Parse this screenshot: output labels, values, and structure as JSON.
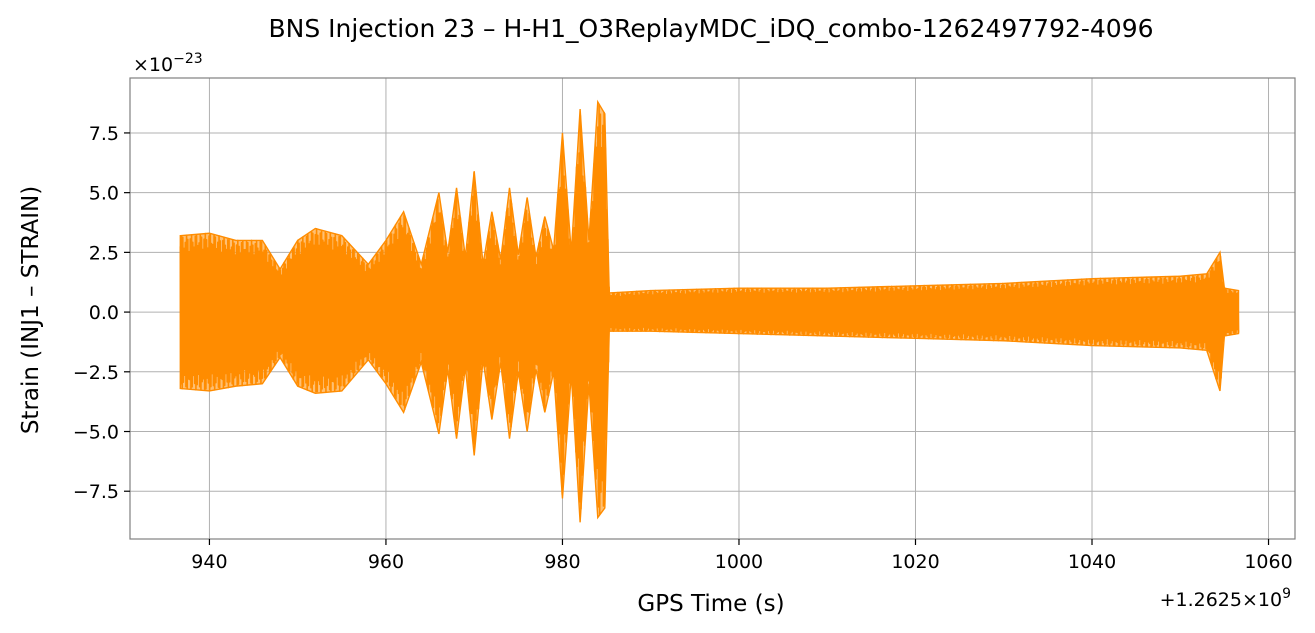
{
  "chart_data": {
    "type": "line",
    "title": "BNS Injection 23 – H-H1_O3ReplayMDC_iDQ_combo-1262497792-4096",
    "xlabel": "GPS Time (s)",
    "ylabel": "Strain (INJ1 – STRAIN)",
    "x_offset_label": "+1.2625×10",
    "x_offset_exponent": "9",
    "y_scale_label": "×10",
    "y_scale_exponent": "−23",
    "xlim": [
      931,
      1063
    ],
    "ylim": [
      -9.5,
      9.8
    ],
    "x_ticks": [
      940,
      960,
      980,
      1000,
      1020,
      1040,
      1060
    ],
    "x_tick_labels": [
      "940",
      "960",
      "980",
      "1000",
      "1020",
      "1040",
      "1060"
    ],
    "y_ticks": [
      -7.5,
      -5.0,
      -2.5,
      0.0,
      2.5,
      5.0,
      7.5
    ],
    "y_tick_labels": [
      "−7.5",
      "−5.0",
      "−2.5",
      "0.0",
      "2.5",
      "5.0",
      "7.5"
    ],
    "grid": true,
    "series": [
      {
        "color": "#ff8c00",
        "x": [
          936.7,
          940,
          943,
          946,
          948,
          950,
          952,
          955,
          958,
          960,
          962,
          964,
          966,
          967,
          968,
          969,
          970,
          971,
          972,
          973,
          974,
          975,
          976,
          977,
          978,
          979,
          980,
          981,
          982,
          983,
          984,
          984.8,
          985.3,
          990,
          1000,
          1010,
          1020,
          1030,
          1040,
          1050,
          1053,
          1054.5,
          1055,
          1056.6
        ],
        "upper": [
          3.2,
          3.3,
          3.0,
          3.0,
          1.8,
          3.0,
          3.5,
          3.2,
          2.0,
          3.0,
          4.2,
          2.0,
          5.0,
          2.5,
          5.2,
          2.3,
          5.9,
          2.0,
          4.2,
          2.2,
          5.2,
          2.4,
          4.8,
          2.3,
          4.0,
          2.6,
          7.5,
          2.5,
          8.5,
          3.0,
          8.8,
          8.3,
          0.8,
          0.9,
          1.0,
          1.0,
          1.1,
          1.2,
          1.4,
          1.5,
          1.6,
          2.5,
          1.0,
          0.9
        ],
        "lower": [
          -3.2,
          -3.3,
          -3.1,
          -3.0,
          -1.9,
          -3.1,
          -3.4,
          -3.3,
          -2.0,
          -3.0,
          -4.2,
          -2.1,
          -5.1,
          -2.4,
          -5.3,
          -2.3,
          -6.0,
          -2.0,
          -4.5,
          -2.1,
          -5.3,
          -2.5,
          -5.0,
          -2.4,
          -4.2,
          -2.5,
          -7.8,
          -2.6,
          -8.8,
          -3.0,
          -8.6,
          -8.2,
          -0.8,
          -0.8,
          -0.9,
          -1.0,
          -1.1,
          -1.2,
          -1.4,
          -1.5,
          -1.6,
          -3.3,
          -1.0,
          -0.9
        ]
      }
    ]
  }
}
